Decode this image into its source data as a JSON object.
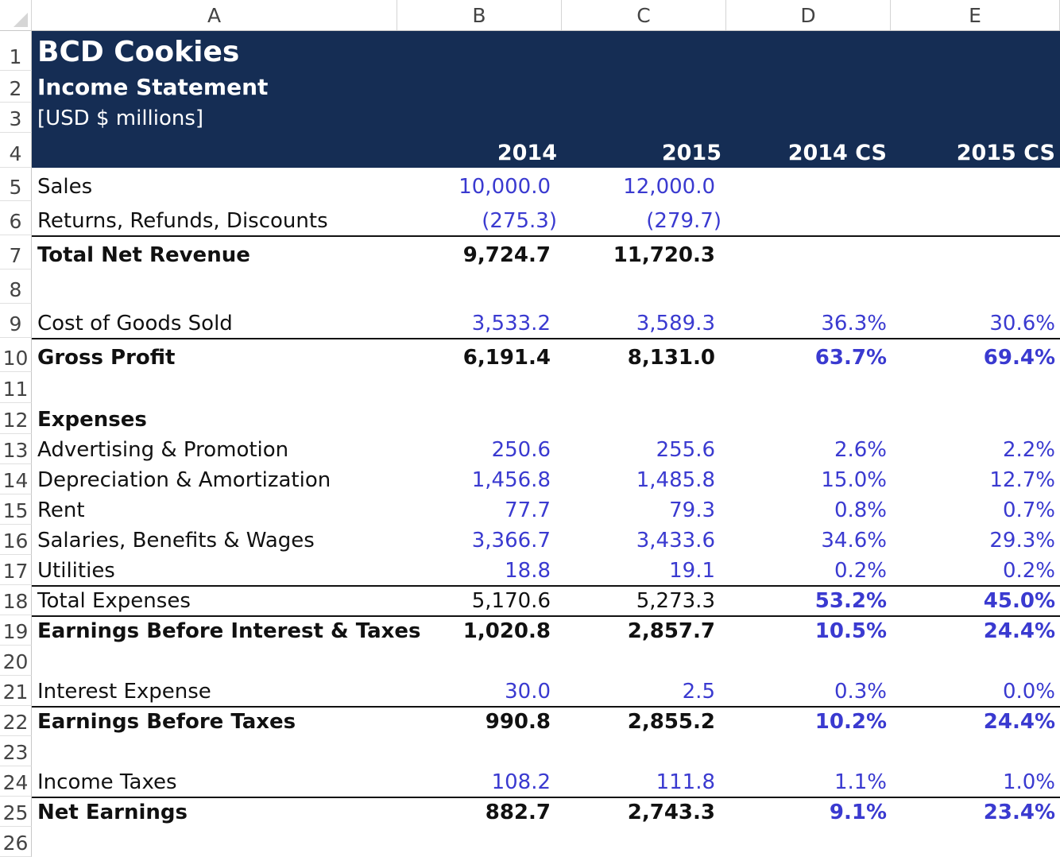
{
  "columns": [
    "A",
    "B",
    "C",
    "D",
    "E"
  ],
  "rows_numbers": [
    "1",
    "2",
    "3",
    "4",
    "5",
    "6",
    "7",
    "8",
    "9",
    "10",
    "11",
    "12",
    "13",
    "14",
    "15",
    "16",
    "17",
    "18",
    "19",
    "20",
    "21",
    "22",
    "23",
    "24",
    "25",
    "26"
  ],
  "header": {
    "title": "BCD Cookies",
    "subtitle": "Income Statement",
    "units": "[USD $ millions]",
    "col_b": "2014",
    "col_c": "2015",
    "col_d": "2014 CS",
    "col_e": "2015 CS"
  },
  "lines": {
    "sales": {
      "label": "Sales",
      "b": "10,000.0",
      "c": "12,000.0",
      "d": "",
      "e": ""
    },
    "returns": {
      "label": "Returns, Refunds, Discounts",
      "b": "(275.3)",
      "c": "(279.7)",
      "d": "",
      "e": ""
    },
    "total_net_revenue": {
      "label": "Total Net Revenue",
      "b": "9,724.7",
      "c": "11,720.3",
      "d": "",
      "e": ""
    },
    "cogs": {
      "label": "Cost of Goods Sold",
      "b": "3,533.2",
      "c": "3,589.3",
      "d": "36.3%",
      "e": "30.6%"
    },
    "gross_profit": {
      "label": "Gross Profit",
      "b": "6,191.4",
      "c": "8,131.0",
      "d": "63.7%",
      "e": "69.4%"
    },
    "expenses_header": {
      "label": "Expenses"
    },
    "advertising": {
      "label": "Advertising & Promotion",
      "b": "250.6",
      "c": "255.6",
      "d": "2.6%",
      "e": "2.2%"
    },
    "depreciation": {
      "label": "Depreciation & Amortization",
      "b": "1,456.8",
      "c": "1,485.8",
      "d": "15.0%",
      "e": "12.7%"
    },
    "rent": {
      "label": "Rent",
      "b": "77.7",
      "c": "79.3",
      "d": "0.8%",
      "e": "0.7%"
    },
    "salaries": {
      "label": "Salaries, Benefits & Wages",
      "b": "3,366.7",
      "c": "3,433.6",
      "d": "34.6%",
      "e": "29.3%"
    },
    "utilities": {
      "label": "Utilities",
      "b": "18.8",
      "c": "19.1",
      "d": "0.2%",
      "e": "0.2%"
    },
    "total_expenses": {
      "label": "Total Expenses",
      "b": "5,170.6",
      "c": "5,273.3",
      "d": "53.2%",
      "e": "45.0%"
    },
    "ebit": {
      "label": "Earnings Before Interest & Taxes",
      "b": "1,020.8",
      "c": "2,857.7",
      "d": "10.5%",
      "e": "24.4%"
    },
    "interest": {
      "label": "Interest Expense",
      "b": "30.0",
      "c": "2.5",
      "d": "0.3%",
      "e": "0.0%"
    },
    "ebt": {
      "label": "Earnings Before Taxes",
      "b": "990.8",
      "c": "2,855.2",
      "d": "10.2%",
      "e": "24.4%"
    },
    "taxes": {
      "label": "Income Taxes",
      "b": "108.2",
      "c": "111.8",
      "d": "1.1%",
      "e": "1.0%"
    },
    "net_earnings": {
      "label": "Net Earnings",
      "b": "882.7",
      "c": "2,743.3",
      "d": "9.1%",
      "e": "23.4%"
    }
  },
  "colors": {
    "header_bg": "#152d54",
    "input_blue": "#3a3ad0"
  }
}
